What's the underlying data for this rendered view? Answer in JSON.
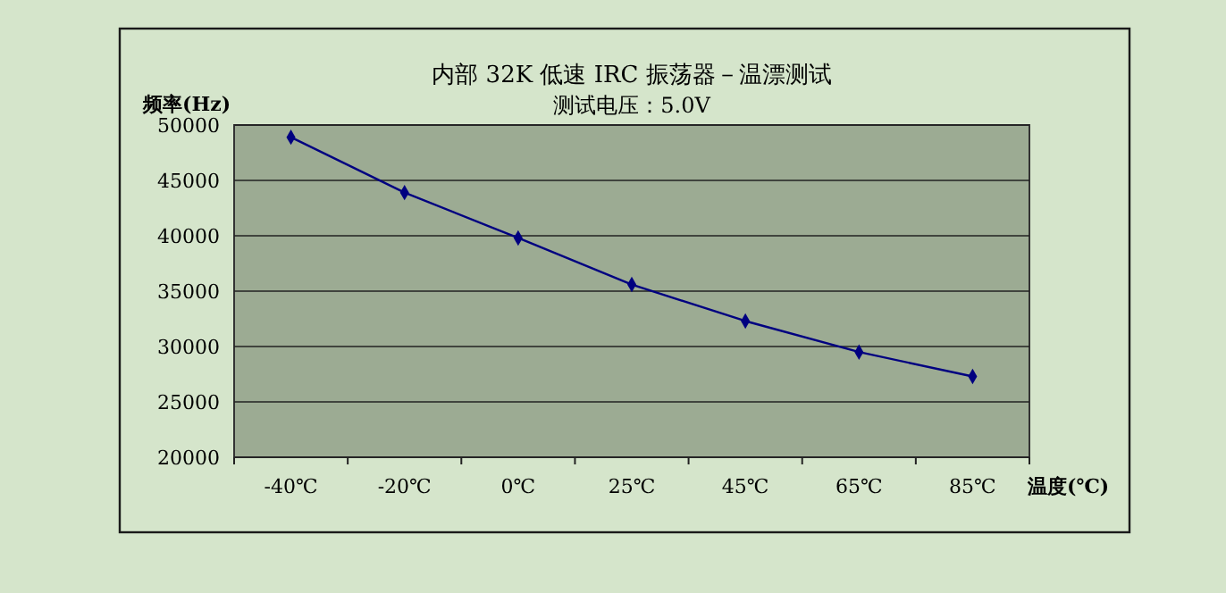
{
  "chart_data": {
    "type": "line",
    "title": "内部 32K 低速 IRC 振荡器－温漂测试",
    "subtitle": "测试电压：5.0V",
    "xlabel": "温度(℃)",
    "ylabel": "频率(Hz)",
    "categories": [
      "-40℃",
      "-20℃",
      "0℃",
      "25℃",
      "45℃",
      "65℃",
      "85℃"
    ],
    "series": [
      {
        "color": "#000080",
        "values": [
          48900,
          43900,
          39800,
          35600,
          32300,
          29500,
          27300
        ]
      }
    ],
    "ylim": [
      20000,
      50000
    ],
    "yticks": [
      20000,
      25000,
      30000,
      35000,
      40000,
      45000,
      50000
    ],
    "grid": "y",
    "marker": "diamond",
    "line_style": "solid"
  }
}
